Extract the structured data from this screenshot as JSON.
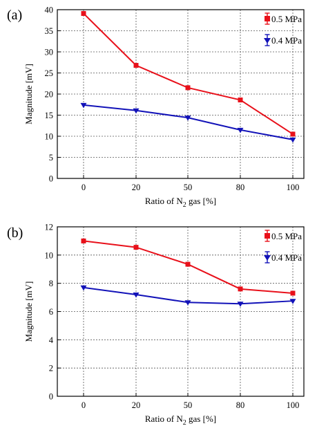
{
  "chart_data": [
    {
      "panel_label": "(a)",
      "type": "line",
      "categories": [
        "0",
        "20",
        "50",
        "80",
        "100"
      ],
      "ylabel": "Magnitude [mV]",
      "xlabel": {
        "prefix": "Ratio of N",
        "sub": "2",
        "suffix": " gas [%]"
      },
      "ylim": [
        0,
        40
      ],
      "yticks": [
        0,
        5,
        10,
        15,
        20,
        25,
        30,
        35,
        40
      ],
      "grid": true,
      "legend": "top-right",
      "series": [
        {
          "name": "0.5 MPa",
          "color": "#e8101a",
          "marker": "square",
          "values": [
            39.1,
            26.8,
            21.5,
            18.6,
            10.5
          ]
        },
        {
          "name": "0.4 MPa",
          "color": "#1212b8",
          "marker": "triangle-down",
          "values": [
            17.4,
            16.1,
            14.4,
            11.5,
            9.2
          ]
        }
      ]
    },
    {
      "panel_label": "(b)",
      "type": "line",
      "categories": [
        "0",
        "20",
        "50",
        "80",
        "100"
      ],
      "ylabel": "Magnitude [mV]",
      "xlabel": {
        "prefix": "Ratio of N",
        "sub": "2",
        "suffix": " gas [%]"
      },
      "ylim": [
        0,
        12
      ],
      "yticks": [
        0,
        2,
        4,
        6,
        8,
        10,
        12
      ],
      "grid": true,
      "legend": "top-right",
      "series": [
        {
          "name": "0.5 MPa",
          "color": "#e8101a",
          "marker": "square",
          "values": [
            11.0,
            10.55,
            9.35,
            7.6,
            7.3
          ]
        },
        {
          "name": "0.4 MPa",
          "color": "#1212b8",
          "marker": "triangle-down",
          "values": [
            7.7,
            7.2,
            6.65,
            6.55,
            6.75
          ]
        }
      ]
    }
  ]
}
